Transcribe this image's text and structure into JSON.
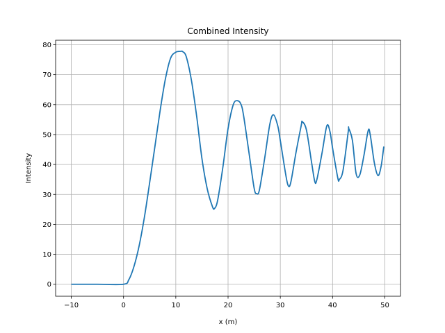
{
  "chart_data": {
    "type": "line",
    "title": "Combined Intensity",
    "xlabel": "x (m)",
    "ylabel": "Intensity",
    "xlim": [
      -13,
      53
    ],
    "ylim": [
      -4,
      81.5
    ],
    "xticks": [
      -10,
      0,
      10,
      20,
      30,
      40,
      50
    ],
    "xtick_labels": [
      "−10",
      "0",
      "10",
      "20",
      "30",
      "40",
      "50"
    ],
    "yticks": [
      0,
      10,
      20,
      30,
      40,
      50,
      60,
      70,
      80
    ],
    "ytick_labels": [
      "0",
      "10",
      "20",
      "30",
      "40",
      "50",
      "60",
      "70",
      "80"
    ],
    "grid": true,
    "line_color": "#1f77b4",
    "series": [
      {
        "x": [
          -10,
          -5,
          0,
          1,
          2,
          3,
          4,
          5,
          6,
          7,
          8,
          9,
          10,
          11,
          11.3,
          12,
          13,
          14,
          15,
          16,
          17,
          17.4,
          18,
          19,
          20,
          21,
          21.8,
          22.5,
          23,
          24,
          25,
          25.5,
          26,
          27,
          28,
          28.7,
          29.5,
          30,
          31,
          31.5,
          32,
          33,
          34,
          34.2,
          35,
          36,
          36.6,
          37,
          38,
          38.9,
          39.5,
          40,
          41,
          41.3,
          42,
          43,
          43.1,
          43.8,
          44.5,
          45.2,
          46,
          46.8,
          47.2,
          48,
          48.7,
          49.3,
          49.8
        ],
        "y": [
          0,
          0,
          0,
          1.5,
          6,
          13,
          22.5,
          34,
          46,
          58,
          68.5,
          75.5,
          77.5,
          77.8,
          77.7,
          76,
          68,
          56,
          42,
          32,
          26,
          25.3,
          28,
          39,
          52,
          60,
          61.3,
          60,
          56,
          44,
          32,
          30.3,
          31.5,
          42,
          53.5,
          56.6,
          53,
          48,
          37,
          33,
          34,
          44,
          53,
          54.3,
          51.5,
          40.5,
          34.3,
          35,
          44,
          52.9,
          51,
          45.5,
          35.5,
          35,
          38,
          51,
          52,
          48,
          37,
          36.5,
          43,
          51.2,
          50,
          40.5,
          36.3,
          39.5,
          46
        ]
      }
    ]
  }
}
